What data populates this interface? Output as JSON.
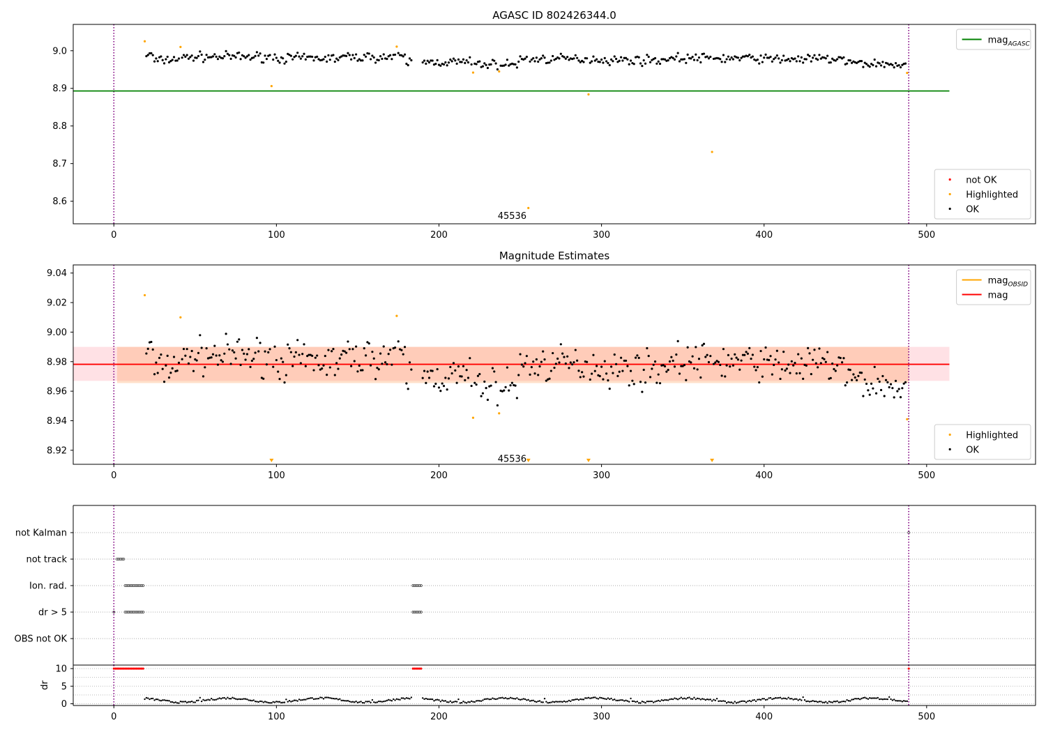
{
  "chart_data": [
    {
      "type": "scatter",
      "title": "AGASC ID 802426344.0",
      "xlabel": "",
      "ylabel": "",
      "xlim": [
        -25,
        567
      ],
      "ylim": [
        8.54,
        9.07
      ],
      "xticks": [
        0,
        100,
        200,
        300,
        400,
        500
      ],
      "yticks": [
        8.6,
        8.7,
        8.8,
        8.9,
        9.0
      ],
      "ytick_labels": [
        "8.6",
        "8.7",
        "8.8",
        "8.9",
        "9.0"
      ],
      "grid": false,
      "legends": [
        {
          "placement": "upper-right",
          "entries": [
            {
              "label": "mag",
              "sub": "AGASC",
              "color": "#008000",
              "kind": "line"
            }
          ]
        },
        {
          "placement": "lower-right",
          "entries": [
            {
              "label": "not OK",
              "color": "#ff0000",
              "kind": "dot"
            },
            {
              "label": "Highlighted",
              "color": "#ffa500",
              "kind": "dot"
            },
            {
              "label": "OK",
              "color": "#000000",
              "kind": "dot"
            }
          ]
        }
      ],
      "hline": {
        "y": 8.893,
        "x_start": -25,
        "x_end": 514,
        "color": "#008000"
      },
      "vlines": [
        {
          "x": 0,
          "color": "#800080"
        },
        {
          "x": 489,
          "color": "#800080"
        }
      ],
      "annotation": {
        "text": "45536",
        "x": 245,
        "y": 8.56
      },
      "ok_series": {
        "name": "OK",
        "color": "#000000",
        "generator": "mag-trace"
      },
      "highlighted": [
        [
          19,
          9.025
        ],
        [
          41,
          9.01
        ],
        [
          97,
          8.906
        ],
        [
          174,
          9.011
        ],
        [
          221,
          8.942
        ],
        [
          237,
          8.945
        ],
        [
          255,
          8.582
        ],
        [
          292,
          8.884
        ],
        [
          368,
          8.731
        ],
        [
          488,
          8.941
        ]
      ]
    },
    {
      "type": "scatter",
      "title": "Magnitude Estimates",
      "xlabel": "",
      "ylabel": "",
      "xlim": [
        -25,
        567
      ],
      "ylim": [
        8.9105,
        9.0455
      ],
      "xticks": [
        0,
        100,
        200,
        300,
        400,
        500
      ],
      "yticks": [
        8.92,
        8.94,
        8.96,
        8.98,
        9.0,
        9.02,
        9.04
      ],
      "ytick_labels": [
        "8.92",
        "8.94",
        "8.96",
        "8.98",
        "9.00",
        "9.02",
        "9.04"
      ],
      "grid": false,
      "legends": [
        {
          "placement": "upper-right",
          "entries": [
            {
              "label": "mag",
              "sub": "OBSID",
              "color": "#ffa500",
              "kind": "line"
            },
            {
              "label": "mag",
              "sub": "",
              "color": "#ff0000",
              "kind": "line"
            }
          ]
        },
        {
          "placement": "lower-right",
          "entries": [
            {
              "label": "Highlighted",
              "color": "#ffa500",
              "kind": "dot"
            },
            {
              "label": "OK",
              "color": "#000000",
              "kind": "dot"
            }
          ]
        }
      ],
      "mag_line": {
        "y": 8.9782,
        "x_start": -25,
        "x_end": 514,
        "color": "#ff0000"
      },
      "bands": [
        {
          "x_start": -25,
          "x_end": 514,
          "y_low": 8.967,
          "y_high": 8.99,
          "color": "#ff9aa8",
          "opacity": 0.3
        },
        {
          "x_start": 2,
          "x_end": 489,
          "y_low": 8.9655,
          "y_high": 8.99,
          "color": "#ffa566",
          "opacity": 0.35
        }
      ],
      "vlines": [
        {
          "x": 0,
          "color": "#800080"
        },
        {
          "x": 489,
          "color": "#800080"
        }
      ],
      "annotation": {
        "text": "45536",
        "x": 245,
        "y": 8.914
      },
      "ok_series": {
        "name": "OK",
        "color": "#000000",
        "generator": "mag-trace"
      },
      "highlighted": [
        [
          19,
          9.025
        ],
        [
          41,
          9.01
        ],
        [
          174,
          9.011
        ],
        [
          221,
          8.942
        ],
        [
          237,
          8.945
        ],
        [
          488,
          8.941
        ]
      ],
      "offscale_markers": [
        97,
        255,
        292,
        368
      ]
    },
    {
      "type": "scatter",
      "title": "",
      "xlabel": "",
      "ylabel": "",
      "xlim": [
        -25,
        567
      ],
      "categories": [
        "not Kalman",
        "not track",
        "Ion. rad.",
        "dr > 5",
        "OBS not OK"
      ],
      "grid": true,
      "flags": {
        "not Kalman": [
          [
            489,
            489
          ]
        ],
        "not track": [
          [
            2,
            6
          ]
        ],
        "Ion. rad.": [
          [
            7,
            18
          ],
          [
            184,
            189
          ]
        ],
        "dr > 5": [
          [
            0,
            0
          ],
          [
            7,
            18
          ],
          [
            184,
            189
          ]
        ],
        "OBS not OK": []
      },
      "vlines": [
        {
          "x": 0,
          "color": "#800080"
        },
        {
          "x": 489,
          "color": "#800080"
        }
      ]
    },
    {
      "type": "scatter",
      "title": "",
      "xlabel": "",
      "ylabel": "dr",
      "xlim": [
        -25,
        567
      ],
      "ylim": [
        -0.5,
        11
      ],
      "xticks": [
        0,
        100,
        200,
        300,
        400,
        500
      ],
      "yticks": [
        0,
        5,
        10
      ],
      "ytick_labels": [
        "0",
        "5",
        "10"
      ],
      "grid": true,
      "clipped_value": 10,
      "clipped_ranges": [
        [
          0,
          18
        ],
        [
          184,
          189
        ],
        [
          489,
          489
        ]
      ],
      "vlines": [
        {
          "x": 0,
          "color": "#800080"
        },
        {
          "x": 489,
          "color": "#800080"
        }
      ],
      "series": [
        {
          "name": "dr",
          "color": "#000000",
          "generator": "dr-trace"
        }
      ]
    }
  ]
}
